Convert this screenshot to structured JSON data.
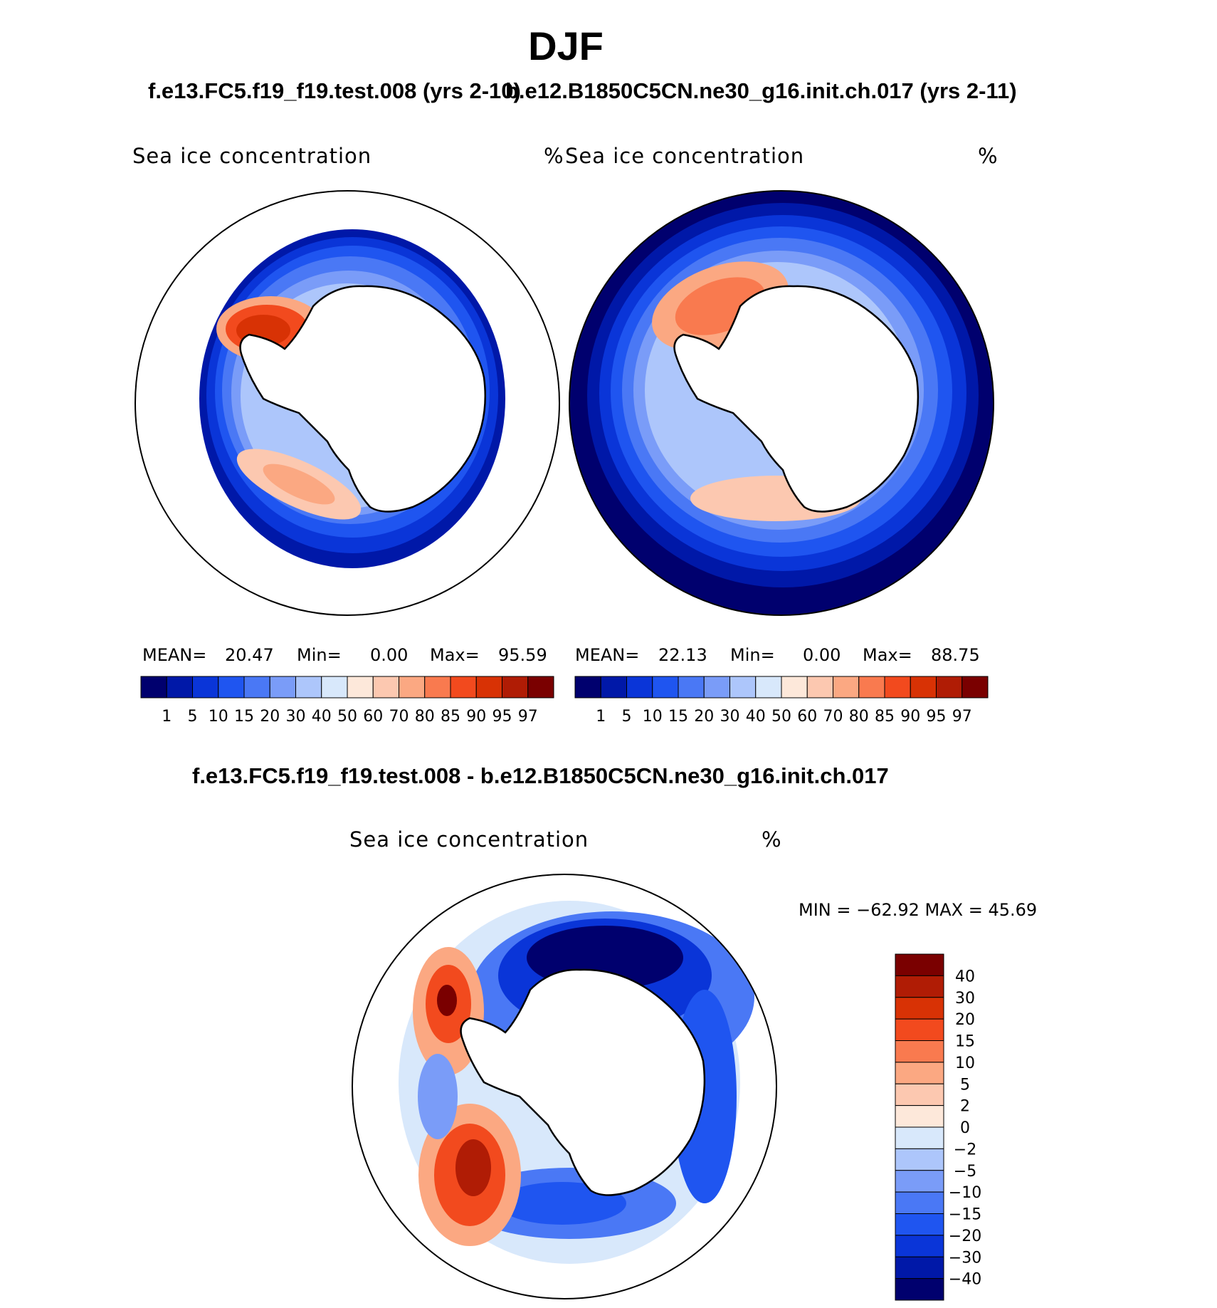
{
  "header": {
    "season": "DJF",
    "case1_title": "f.e13.FC5.f19_f19.test.008 (yrs 2-10)",
    "case2_title": "b.e12.B1850C5CN.ne30_g16.init.ch.017 (yrs 2-11)",
    "diff_title": "f.e13.FC5.f19_f19.test.008 - b.e12.B1850C5CN.ne30_g16.init.ch.017"
  },
  "panels": {
    "case1": {
      "variable": "Sea ice concentration",
      "units": "%",
      "mean_label": "MEAN=",
      "mean": "20.47",
      "min_label": "Min=",
      "min": "0.00",
      "max_label": "Max=",
      "max": "95.59"
    },
    "case2": {
      "variable": "Sea ice concentration",
      "units": "%",
      "mean_label": "MEAN=",
      "mean": "22.13",
      "min_label": "Min=",
      "min": "0.00",
      "max_label": "Max=",
      "max": "88.75"
    },
    "diff": {
      "variable": "Sea ice concentration",
      "units": "%",
      "minmax": "MIN = −62.92  MAX =   45.69"
    }
  },
  "colorbars": {
    "abs_levels": [
      "1",
      "5",
      "10",
      "15",
      "20",
      "30",
      "40",
      "50",
      "60",
      "70",
      "80",
      "85",
      "90",
      "95",
      "97"
    ],
    "abs_colors": [
      "#00006e",
      "#0018a8",
      "#0a35d8",
      "#1f55f0",
      "#4a78f5",
      "#7a9cf8",
      "#adc6fb",
      "#d8e8fb",
      "#fde8da",
      "#fcc8b0",
      "#fba882",
      "#f97a4f",
      "#f24a1e",
      "#d83205",
      "#b01c05",
      "#7a0000"
    ],
    "diff_levels": [
      "40",
      "30",
      "20",
      "15",
      "10",
      "5",
      "2",
      "0",
      "−2",
      "−5",
      "−10",
      "−15",
      "−20",
      "−30",
      "−40"
    ],
    "diff_colors": [
      "#7a0000",
      "#b01c05",
      "#d83205",
      "#f24a1e",
      "#f97a4f",
      "#fba882",
      "#fcc8b0",
      "#fde8da",
      "#d8e8fb",
      "#adc6fb",
      "#7a9cf8",
      "#4a78f5",
      "#1f55f0",
      "#0a35d8",
      "#0018a8",
      "#00006e"
    ]
  }
}
